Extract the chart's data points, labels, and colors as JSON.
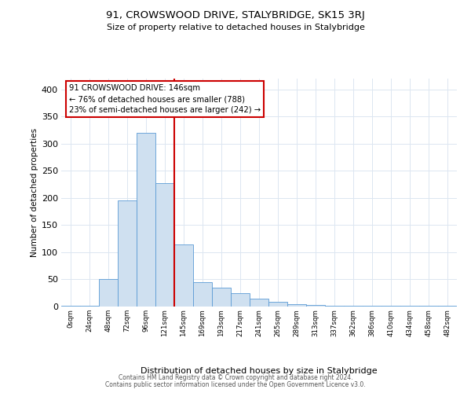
{
  "title": "91, CROWSWOOD DRIVE, STALYBRIDGE, SK15 3RJ",
  "subtitle": "Size of property relative to detached houses in Stalybridge",
  "xlabel": "Distribution of detached houses by size in Stalybridge",
  "ylabel": "Number of detached properties",
  "bar_labels": [
    "0sqm",
    "24sqm",
    "48sqm",
    "72sqm",
    "96sqm",
    "121sqm",
    "145sqm",
    "169sqm",
    "193sqm",
    "217sqm",
    "241sqm",
    "265sqm",
    "289sqm",
    "313sqm",
    "337sqm",
    "362sqm",
    "386sqm",
    "410sqm",
    "434sqm",
    "458sqm",
    "482sqm"
  ],
  "bar_values": [
    2,
    2,
    50,
    195,
    320,
    228,
    115,
    45,
    35,
    25,
    15,
    8,
    5,
    3,
    2,
    2,
    1,
    1,
    1,
    1,
    2
  ],
  "bar_color": "#cfe0f0",
  "bar_edge_color": "#5b9bd5",
  "vline_color": "#cc0000",
  "ylim": [
    0,
    420
  ],
  "yticks": [
    0,
    50,
    100,
    150,
    200,
    250,
    300,
    350,
    400
  ],
  "annotation_line1": "91 CROWSWOOD DRIVE: 146sqm",
  "annotation_line2": "← 76% of detached houses are smaller (788)",
  "annotation_line3": "23% of semi-detached houses are larger (242) →",
  "annotation_box_color": "#ffffff",
  "annotation_box_edge": "#cc0000",
  "footer1": "Contains HM Land Registry data © Crown copyright and database right 2024.",
  "footer2": "Contains public sector information licensed under the Open Government Licence v3.0.",
  "background_color": "#ffffff",
  "grid_color": "#dce6f1"
}
